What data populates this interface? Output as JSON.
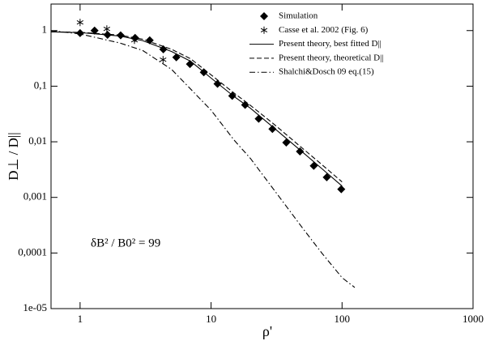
{
  "chart_data": {
    "type": "line",
    "xlabel": "ρ'",
    "ylabel": "D⊥ / D||",
    "annotation": "δB² / B0² = 99",
    "xscale": "log",
    "yscale": "log",
    "xlim": [
      0.6,
      1000
    ],
    "ylim": [
      1e-05,
      3
    ],
    "xticks": [
      1,
      10,
      100,
      1000
    ],
    "yticks": [
      {
        "value": 1e-05,
        "label": "1e-05"
      },
      {
        "value": 0.0001,
        "label": "0,0001"
      },
      {
        "value": 0.001,
        "label": "0,001"
      },
      {
        "value": 0.01,
        "label": "0,01"
      },
      {
        "value": 0.1,
        "label": "0,1"
      },
      1
    ],
    "legend": "upper right",
    "series": [
      {
        "name": "Simulation",
        "style": "diamond",
        "color": "#000000",
        "x": [
          1,
          1.29,
          1.62,
          2.04,
          2.63,
          3.4,
          4.32,
          5.43,
          6.9,
          8.8,
          11.2,
          14.5,
          18.2,
          23.1,
          29.4,
          37.5,
          47.7,
          60.8,
          76.4,
          98.6
        ],
        "values": [
          0.9,
          1.0,
          0.84,
          0.82,
          0.74,
          0.67,
          0.46,
          0.33,
          0.25,
          0.178,
          0.11,
          0.067,
          0.046,
          0.026,
          0.017,
          0.0097,
          0.0067,
          0.0037,
          0.0023,
          0.0014
        ]
      },
      {
        "name": "Casse et al. 2002 (Fig. 6)",
        "style": "asterisk",
        "color": "#000000",
        "x": [
          1,
          1.6,
          2.6,
          4.3
        ],
        "values": [
          1.4,
          1.07,
          0.67,
          0.3
        ]
      },
      {
        "name": "Present theory, best fitted D||",
        "style": "solid",
        "color": "#000000",
        "x": [
          0.6,
          1,
          2,
          3,
          5,
          7,
          10,
          15,
          20,
          30,
          50,
          70,
          100
        ],
        "values": [
          0.95,
          0.92,
          0.8,
          0.66,
          0.42,
          0.28,
          0.14,
          0.065,
          0.04,
          0.018,
          0.0065,
          0.0033,
          0.0016
        ]
      },
      {
        "name": "Present theory, theoretical D||",
        "style": "dashed",
        "color": "#000000",
        "x": [
          0.6,
          1,
          2,
          3,
          5,
          7,
          10,
          15,
          20,
          30,
          50,
          70,
          100
        ],
        "values": [
          0.95,
          0.93,
          0.83,
          0.7,
          0.46,
          0.31,
          0.16,
          0.075,
          0.045,
          0.021,
          0.0076,
          0.0039,
          0.0019
        ]
      },
      {
        "name": "Shalchi&Dosch 09 eq.(15)",
        "style": "dashdot",
        "color": "#000000",
        "x": [
          0.6,
          1,
          2,
          3,
          5,
          10,
          15,
          20,
          30,
          50,
          70,
          100,
          125
        ],
        "values": [
          1.0,
          0.87,
          0.6,
          0.44,
          0.2,
          0.037,
          0.0107,
          0.005,
          0.0014,
          0.00028,
          0.0001,
          3.6e-05,
          2.4e-05
        ]
      }
    ]
  }
}
